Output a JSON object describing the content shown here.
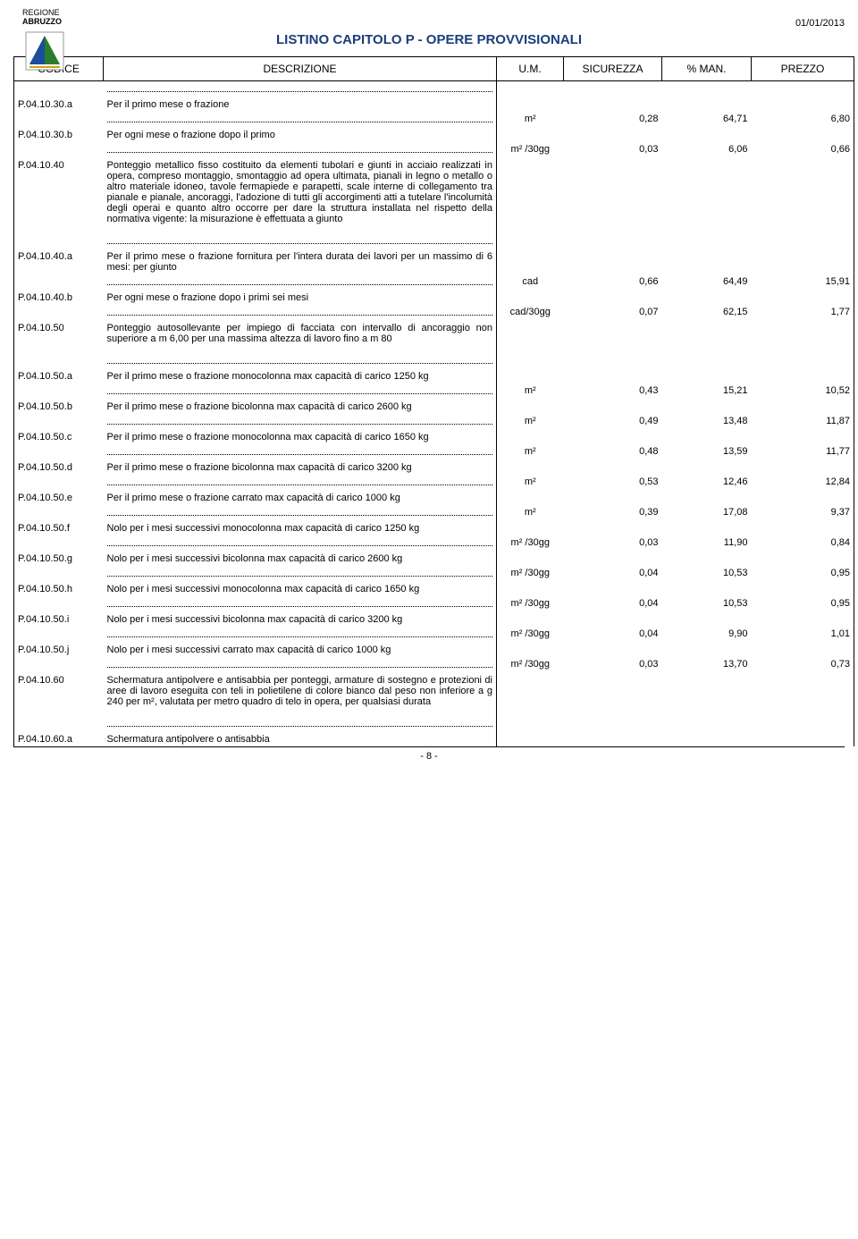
{
  "date": "01/01/2013",
  "logo_region": "REGIONE",
  "logo_name": "ABRUZZO",
  "title": "LISTINO CAPITOLO P - OPERE PROVVISIONALI",
  "headers": {
    "codice": "CODICE",
    "desc": "DESCRIZIONE",
    "um": "U.M.",
    "sic": "SICUREZZA",
    "man": "% MAN.",
    "prezzo": "PREZZO"
  },
  "rows": [
    {
      "type": "dots"
    },
    {
      "code": "P.04.10.30.a",
      "desc": "Per il  primo mese o frazione"
    },
    {
      "type": "dots-data",
      "um": "m²",
      "sic": "0,28",
      "man": "64,71",
      "prezzo": "6,80"
    },
    {
      "code": "P.04.10.30.b",
      "desc": "Per ogni mese o frazione dopo il primo"
    },
    {
      "type": "dots-data",
      "um": "m² /30gg",
      "sic": "0,03",
      "man": "6,06",
      "prezzo": "0,66"
    },
    {
      "code": "P.04.10.40",
      "desc": "Ponteggio metallico fisso costituito da elementi tubolari e giunti in acciaio realizzati in opera, compreso montaggio, smontaggio ad opera ultimata, pianali in legno o metallo o altro materiale idoneo, tavole fermapiede e parapetti, scale interne di collegamento tra pianale e pianale, ancoraggi, l'adozione di tutti gli accorgimenti atti a tutelare l'incolumità degli operai e quanto altro occorre per dare la struttura installata nel rispetto della normativa vigente: la misurazione è effettuata a giunto"
    },
    {
      "type": "gap"
    },
    {
      "type": "dots"
    },
    {
      "code": "P.04.10.40.a",
      "desc": "Per il primo mese o frazione fornitura per l'intera durata dei lavori per un massimo di 6 mesi: per giunto"
    },
    {
      "type": "dots-data",
      "um": "cad",
      "sic": "0,66",
      "man": "64,49",
      "prezzo": "15,91"
    },
    {
      "code": "P.04.10.40.b",
      "desc": "Per ogni mese o frazione dopo i primi sei mesi"
    },
    {
      "type": "dots-data",
      "um": "cad/30gg",
      "sic": "0,07",
      "man": "62,15",
      "prezzo": "1,77"
    },
    {
      "code": "P.04.10.50",
      "desc": "Ponteggio autosollevante per impiego di facciata con intervallo di ancoraggio non superiore a m 6,00 per una massima altezza di lavoro fino a m 80"
    },
    {
      "type": "gap"
    },
    {
      "type": "dots"
    },
    {
      "code": "P.04.10.50.a",
      "desc": "Per il primo mese o frazione monocolonna max capacità di carico 1250 kg"
    },
    {
      "type": "dots-data",
      "um": "m²",
      "sic": "0,43",
      "man": "15,21",
      "prezzo": "10,52"
    },
    {
      "code": "P.04.10.50.b",
      "desc": "Per il primo mese o frazione bicolonna max capacità di carico 2600 kg"
    },
    {
      "type": "dots-data",
      "um": "m²",
      "sic": "0,49",
      "man": "13,48",
      "prezzo": "11,87"
    },
    {
      "code": "P.04.10.50.c",
      "desc": "Per il primo mese o frazione monocolonna max capacità di carico 1650 kg"
    },
    {
      "type": "dots-data",
      "um": "m²",
      "sic": "0,48",
      "man": "13,59",
      "prezzo": "11,77"
    },
    {
      "code": "P.04.10.50.d",
      "desc": "Per il primo mese o frazione bicolonna max capacità di carico 3200 kg"
    },
    {
      "type": "dots-data",
      "um": "m²",
      "sic": "0,53",
      "man": "12,46",
      "prezzo": "12,84"
    },
    {
      "code": "P.04.10.50.e",
      "desc": "Per il primo mese o frazione carrato max capacità di carico 1000 kg"
    },
    {
      "type": "dots-data",
      "um": "m²",
      "sic": "0,39",
      "man": "17,08",
      "prezzo": "9,37"
    },
    {
      "code": "P.04.10.50.f",
      "desc": "Nolo per i mesi successivi monocolonna max capacità di carico 1250 kg"
    },
    {
      "type": "dots-data",
      "um": "m² /30gg",
      "sic": "0,03",
      "man": "11,90",
      "prezzo": "0,84"
    },
    {
      "code": "P.04.10.50.g",
      "desc": "Nolo per i mesi successivi bicolonna max capacità di carico 2600 kg"
    },
    {
      "type": "dots-data",
      "um": "m² /30gg",
      "sic": "0,04",
      "man": "10,53",
      "prezzo": "0,95"
    },
    {
      "code": "P.04.10.50.h",
      "desc": "Nolo per i mesi successivi monocolonna max capacità di carico 1650 kg"
    },
    {
      "type": "dots-data",
      "um": "m² /30gg",
      "sic": "0,04",
      "man": "10,53",
      "prezzo": "0,95"
    },
    {
      "code": "P.04.10.50.i",
      "desc": "Nolo per i mesi successivi bicolonna max capacità di carico 3200 kg"
    },
    {
      "type": "dots-data",
      "um": "m² /30gg",
      "sic": "0,04",
      "man": "9,90",
      "prezzo": "1,01"
    },
    {
      "code": "P.04.10.50.j",
      "desc": "Nolo per i mesi successivi carrato max capacità di carico 1000 kg"
    },
    {
      "type": "dots-data",
      "um": "m² /30gg",
      "sic": "0,03",
      "man": "13,70",
      "prezzo": "0,73"
    },
    {
      "code": "P.04.10.60",
      "desc": "Schermatura antipolvere e  antisabbia per ponteggi, armature di sostegno e protezioni di aree di lavoro eseguita con  teli in polietilene di colore bianco dal peso non inferiore a g 240 per m², valutata per metro quadro di telo in opera, per qualsiasi durata"
    },
    {
      "type": "gap"
    },
    {
      "type": "dots"
    },
    {
      "code": "P.04.10.60.a",
      "desc": "Schermatura antipolvere o antisabbia"
    }
  ],
  "page_num": "- 8 -"
}
